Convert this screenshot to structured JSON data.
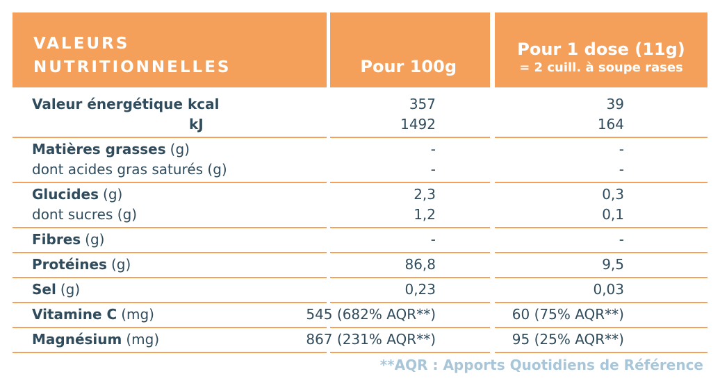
{
  "header": {
    "title": [
      "VALEURS",
      "NUTRITIONNELLES"
    ],
    "per_100g": "Pour 100g",
    "per_dose": "Pour 1 dose (11g)",
    "per_dose_note": "= 2 cuill. à soupe rases"
  },
  "groups": [
    {
      "lines": [
        {
          "label": "Valeur énergétique kcal",
          "unit": "",
          "per_100g": "357",
          "per_dose": "39"
        },
        {
          "label": "kJ",
          "unit": "",
          "per_100g": "1492",
          "per_dose": "164"
        }
      ]
    },
    {
      "lines": [
        {
          "label": "Matières grasses",
          "unit": "(g)",
          "per_100g": "-",
          "per_dose": "-"
        },
        {
          "label": "",
          "unit": "dont acides gras saturés (g)",
          "per_100g": "-",
          "per_dose": "-"
        }
      ]
    },
    {
      "lines": [
        {
          "label": "Glucides",
          "unit": "(g)",
          "per_100g": "2,3",
          "per_dose": "0,3"
        },
        {
          "label": "",
          "unit": "dont sucres (g)",
          "per_100g": "1,2",
          "per_dose": "0,1"
        }
      ]
    },
    {
      "lines": [
        {
          "label": "Fibres",
          "unit": "(g)",
          "per_100g": "-",
          "per_dose": "-"
        }
      ]
    },
    {
      "lines": [
        {
          "label": "Protéines",
          "unit": "(g)",
          "per_100g": "86,8",
          "per_dose": "9,5"
        }
      ]
    },
    {
      "lines": [
        {
          "label": "Sel",
          "unit": "(g)",
          "per_100g": "0,23",
          "per_dose": "0,03"
        }
      ]
    },
    {
      "lines": [
        {
          "label": "Vitamine C",
          "unit": "(mg)",
          "per_100g": "545 (682% AQR**)",
          "per_dose": "60 (75% AQR**)"
        }
      ]
    },
    {
      "lines": [
        {
          "label": "Magnésium",
          "unit": "(mg)",
          "per_100g": "867 (231% AQR**)",
          "per_dose": "95 (25% AQR**)"
        }
      ]
    }
  ],
  "footnote": "**AQR : Apports Quotidiens de Référence"
}
